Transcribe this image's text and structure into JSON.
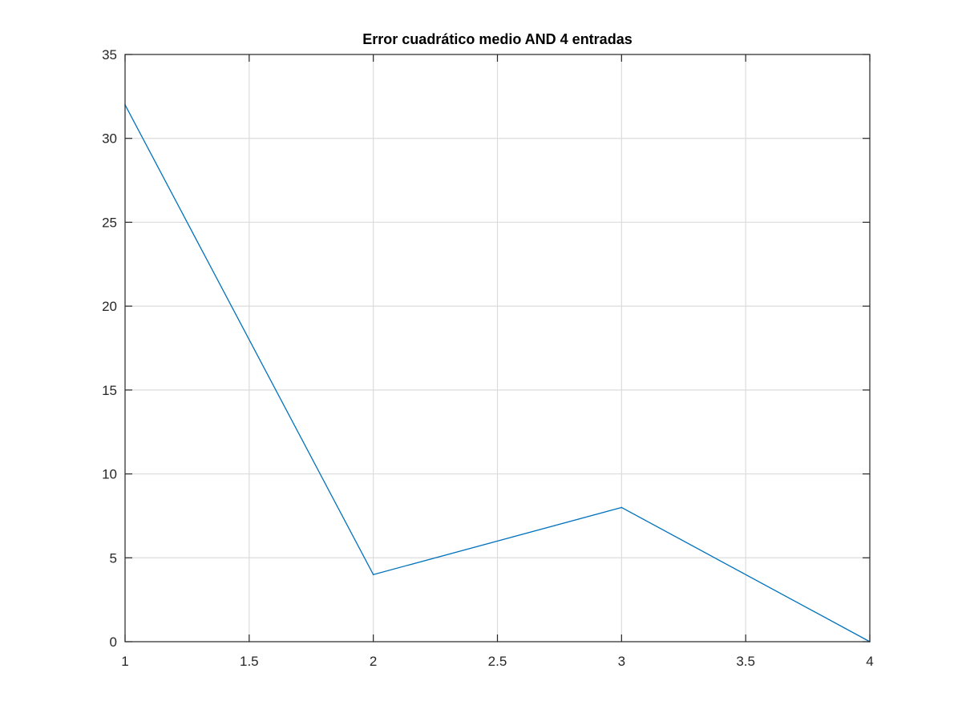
{
  "chart_data": {
    "type": "line",
    "title": "Error cuadrático medio AND 4 entradas",
    "xlabel": "",
    "ylabel": "",
    "xlim": [
      1,
      4
    ],
    "ylim": [
      0,
      35
    ],
    "xticks": [
      1,
      1.5,
      2,
      2.5,
      3,
      3.5,
      4
    ],
    "xtick_labels": [
      "1",
      "1.5",
      "2",
      "2.5",
      "3",
      "3.5",
      "4"
    ],
    "yticks": [
      0,
      5,
      10,
      15,
      20,
      25,
      30,
      35
    ],
    "ytick_labels": [
      "0",
      "5",
      "10",
      "15",
      "20",
      "25",
      "30",
      "35"
    ],
    "grid": true,
    "series": [
      {
        "x": [
          1,
          2,
          3,
          4
        ],
        "y": [
          32,
          4,
          8,
          0
        ],
        "color": "#0072BD"
      }
    ]
  }
}
